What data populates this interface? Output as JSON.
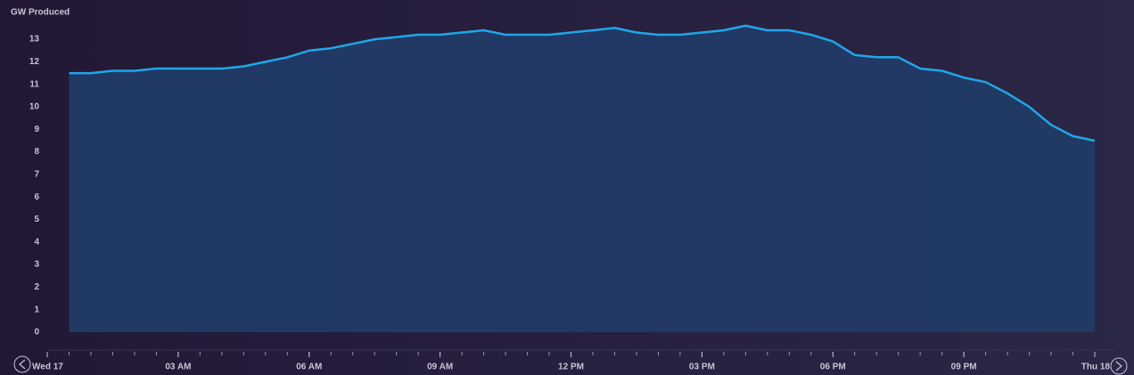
{
  "chart_data": {
    "type": "area",
    "y_axis_label": "GW Produced",
    "x": [
      0.5,
      1,
      1.5,
      2,
      2.5,
      3,
      3.5,
      4,
      4.5,
      5,
      5.5,
      6,
      6.5,
      7,
      7.5,
      8,
      8.5,
      9,
      9.5,
      10,
      10.5,
      11,
      11.5,
      12,
      12.5,
      13,
      13.5,
      14,
      14.5,
      15,
      15.5,
      16,
      16.5,
      17,
      17.5,
      18,
      18.5,
      19,
      19.5,
      20,
      20.5,
      21,
      21.5,
      22,
      22.5,
      23,
      23.5,
      24
    ],
    "series": [
      {
        "name": "GW Produced",
        "color": "#1ea7ea",
        "values": [
          11.5,
          11.5,
          11.6,
          11.6,
          11.7,
          11.7,
          11.7,
          11.7,
          11.8,
          12.0,
          12.2,
          12.5,
          12.6,
          12.8,
          13.0,
          13.1,
          13.2,
          13.2,
          13.3,
          13.4,
          13.2,
          13.2,
          13.2,
          13.3,
          13.4,
          13.5,
          13.3,
          13.2,
          13.2,
          13.3,
          13.4,
          13.6,
          13.4,
          13.4,
          13.2,
          12.9,
          12.3,
          12.2,
          12.2,
          11.7,
          11.6,
          11.3,
          11.1,
          10.6,
          10.0,
          9.2,
          8.7,
          8.5
        ]
      }
    ],
    "xlim": [
      0,
      24
    ],
    "xticks": [
      {
        "value": 0,
        "label": "Wed 17"
      },
      {
        "value": 3,
        "label": "03 AM"
      },
      {
        "value": 6,
        "label": "06 AM"
      },
      {
        "value": 9,
        "label": "09 AM"
      },
      {
        "value": 12,
        "label": "12 PM"
      },
      {
        "value": 15,
        "label": "03 PM"
      },
      {
        "value": 18,
        "label": "06 PM"
      },
      {
        "value": 21,
        "label": "09 PM"
      },
      {
        "value": 24,
        "label": "Thu 18"
      }
    ],
    "xminorticks": [
      0,
      0.5,
      1,
      1.5,
      2,
      2.5,
      3,
      3.5,
      4,
      4.5,
      5,
      5.5,
      6,
      6.5,
      7,
      7.5,
      8,
      8.5,
      9,
      9.5,
      10,
      10.5,
      11,
      11.5,
      12,
      12.5,
      13,
      13.5,
      14,
      14.5,
      15,
      15.5,
      16,
      16.5,
      17,
      17.5,
      18,
      18.5,
      19,
      19.5,
      20,
      20.5,
      21,
      21.5,
      22,
      22.5,
      23,
      23.5,
      24
    ],
    "ylim": [
      0,
      14
    ],
    "yticks": [
      0,
      1,
      2,
      3,
      4,
      5,
      6,
      7,
      8,
      9,
      10,
      11,
      12,
      13
    ],
    "area_color": "#213b66"
  }
}
